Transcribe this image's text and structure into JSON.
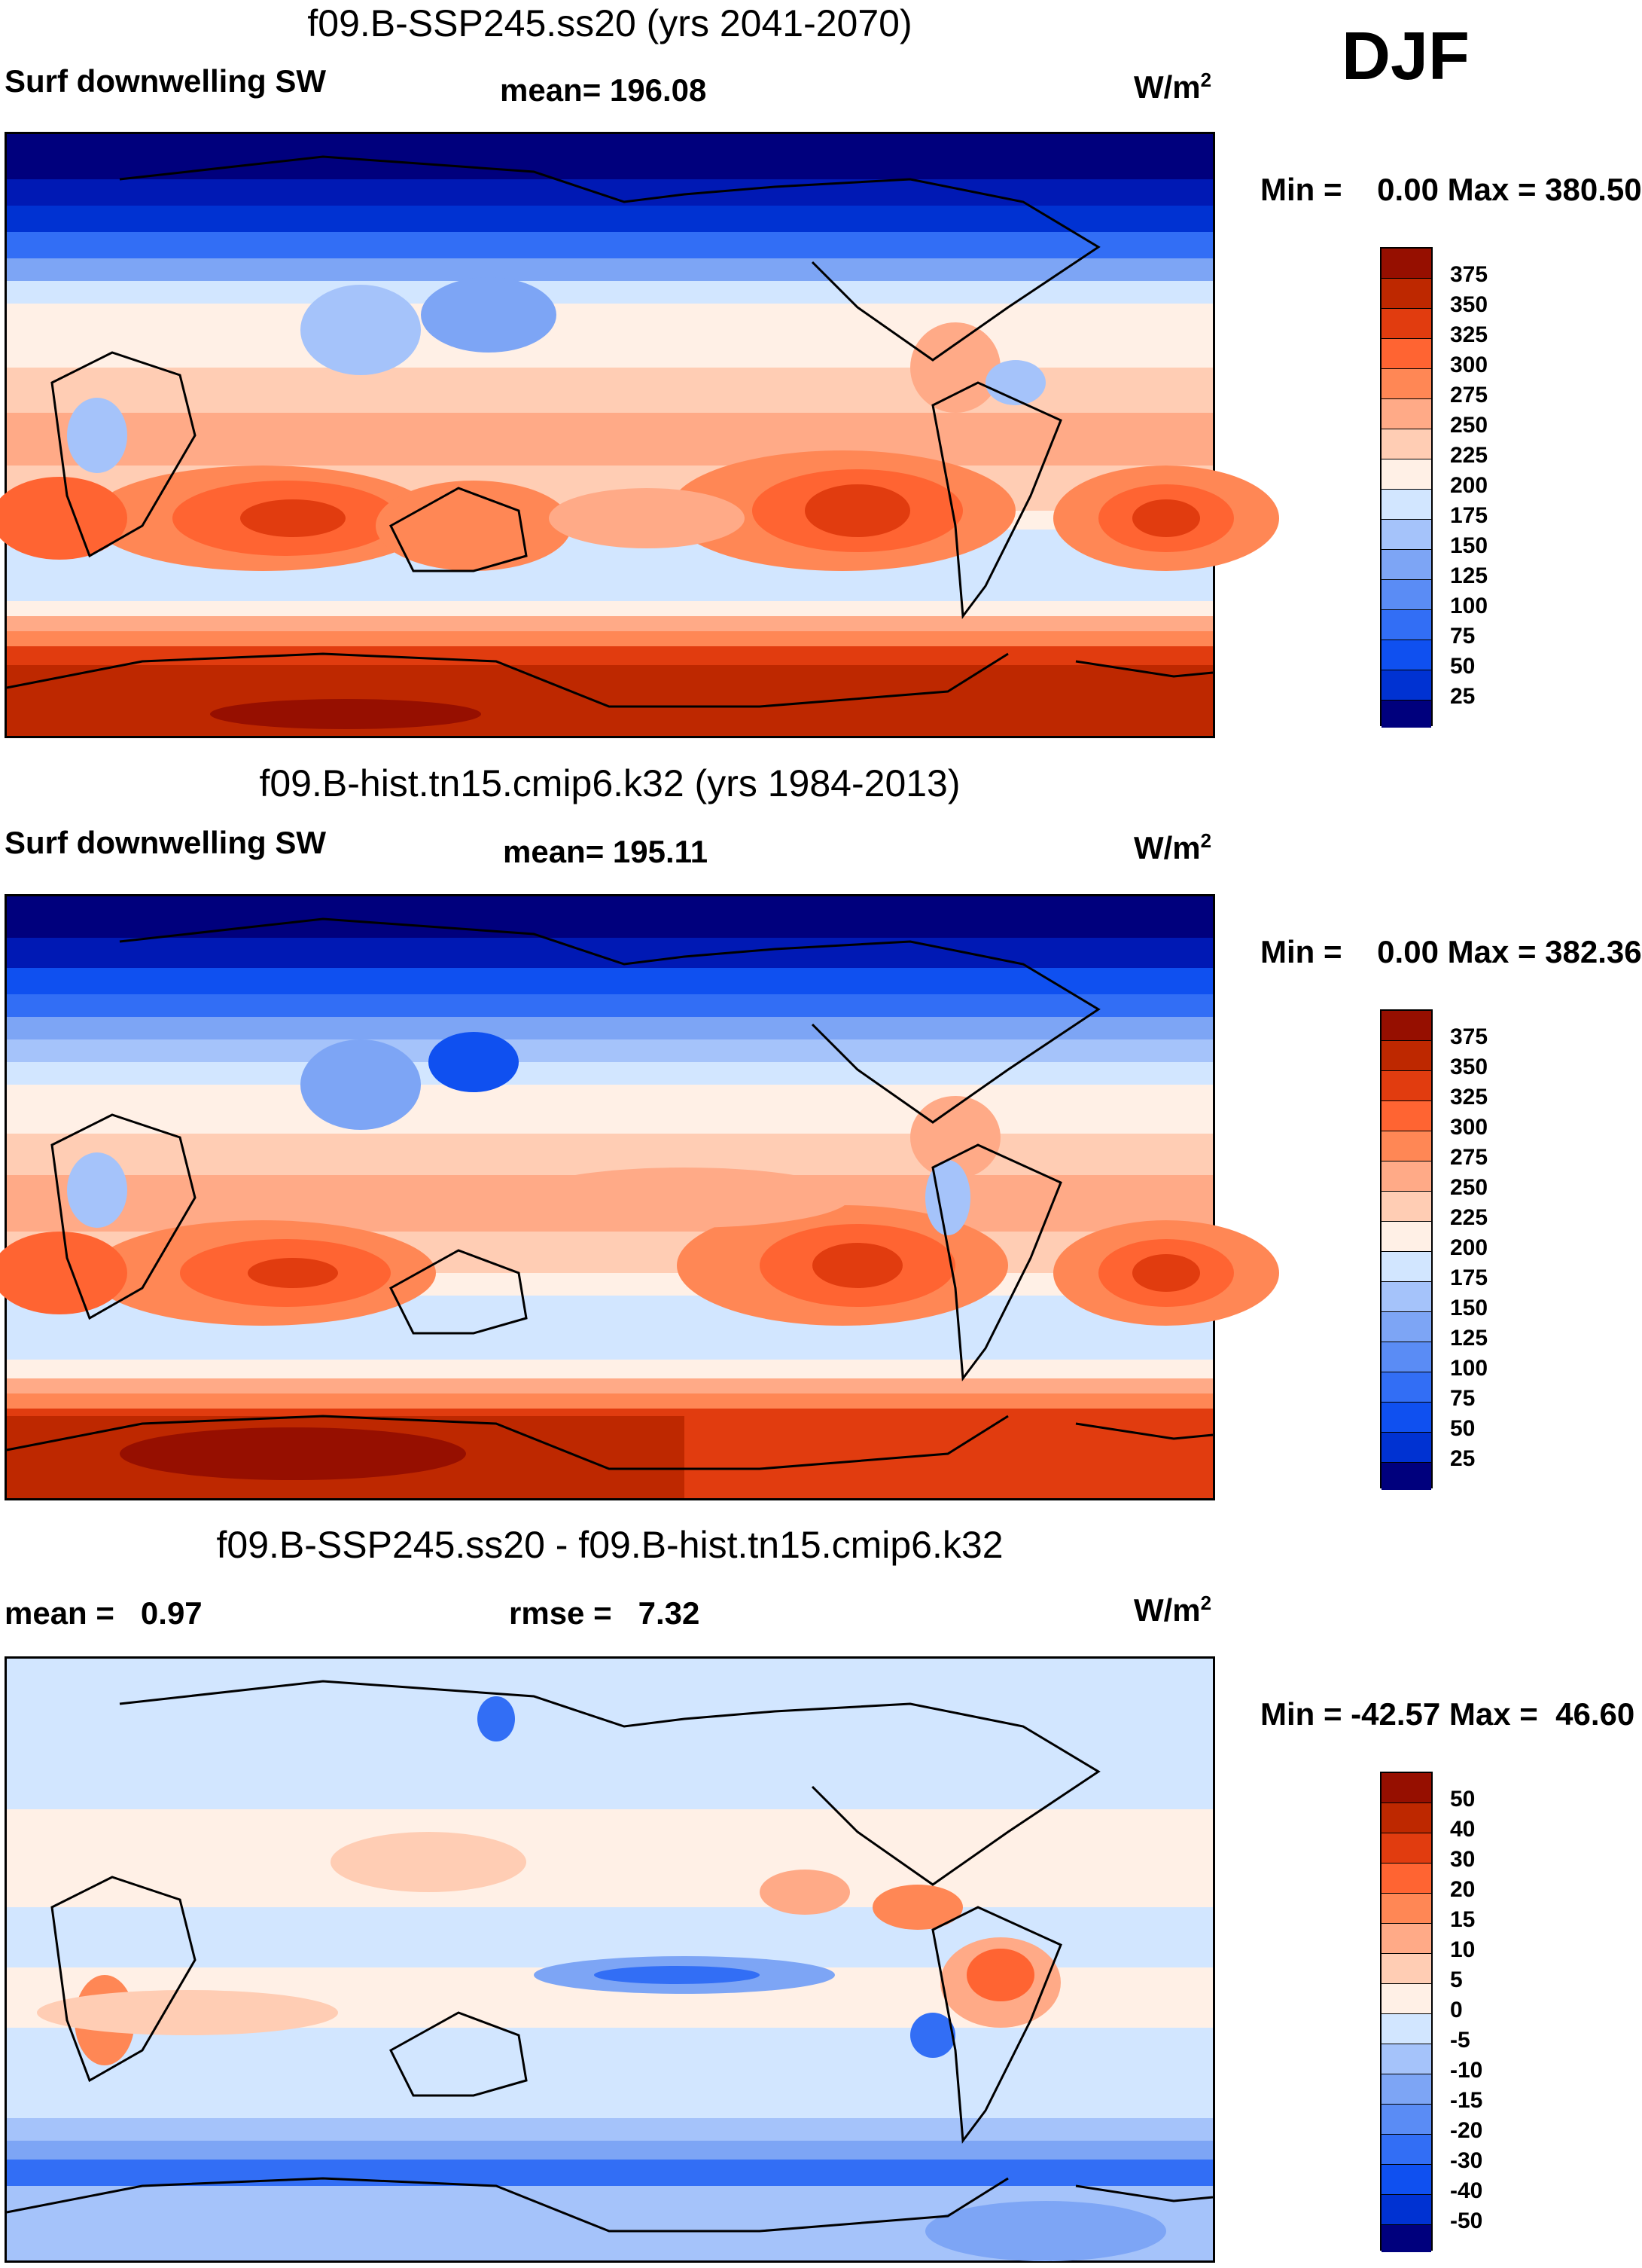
{
  "season": "DJF",
  "colors": {
    "abs_scale": [
      "#00007d",
      "#0019b4",
      "#0032d2",
      "#0f50f0",
      "#326ef5",
      "#5a8cf5",
      "#7da5f5",
      "#a5c3fa",
      "#d2e6ff",
      "#fff0e6",
      "#ffcdb4",
      "#ffaa87",
      "#ff8755",
      "#ff6432",
      "#e13c0f",
      "#be2800",
      "#960f00"
    ],
    "diff_scale": [
      "#00007d",
      "#0019b4",
      "#0032d2",
      "#0f50f0",
      "#326ef5",
      "#5a8cf5",
      "#7da5f5",
      "#a5c3fa",
      "#d2e6ff",
      "#fff0e6",
      "#ffcdb4",
      "#ffaa87",
      "#ff8755",
      "#ff6432",
      "#e13c0f",
      "#be2800",
      "#960f00"
    ],
    "land_outline": "#000000"
  },
  "panels": [
    {
      "id": "future",
      "title": "f09.B-SSP245.ss20 (yrs 2041-2070)",
      "variable": "Surf downwelling SW",
      "stat": "mean= 196.08",
      "units_base": "W/m",
      "units_exp": "2",
      "minmax": "Min =    0.00 Max = 380.50",
      "colorbar_ticks": [
        "375",
        "350",
        "325",
        "300",
        "275",
        "250",
        "225",
        "200",
        "175",
        "150",
        "125",
        "100",
        "75",
        "50",
        "25"
      ],
      "scale": "abs"
    },
    {
      "id": "historical",
      "title": "f09.B-hist.tn15.cmip6.k32 (yrs 1984-2013)",
      "variable": "Surf downwelling SW",
      "stat": "mean= 195.11",
      "units_base": "W/m",
      "units_exp": "2",
      "minmax": "Min =    0.00 Max = 382.36",
      "colorbar_ticks": [
        "375",
        "350",
        "325",
        "300",
        "275",
        "250",
        "225",
        "200",
        "175",
        "150",
        "125",
        "100",
        "75",
        "50",
        "25"
      ],
      "scale": "abs"
    },
    {
      "id": "difference",
      "title": "f09.B-SSP245.ss20 - f09.B-hist.tn15.cmip6.k32",
      "variable": "mean =   0.97",
      "stat": "rmse =   7.32",
      "units_base": "W/m",
      "units_exp": "2",
      "minmax": "Min = -42.57 Max =  46.60",
      "colorbar_ticks": [
        "50",
        "40",
        "30",
        "20",
        "15",
        "10",
        "5",
        "0",
        "-5",
        "-10",
        "-15",
        "-20",
        "-30",
        "-40",
        "-50"
      ],
      "scale": "diff"
    }
  ]
}
